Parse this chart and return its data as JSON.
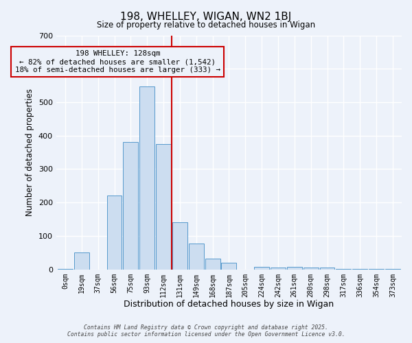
{
  "title": "198, WHELLEY, WIGAN, WN2 1BJ",
  "subtitle": "Size of property relative to detached houses in Wigan",
  "xlabel": "Distribution of detached houses by size in Wigan",
  "ylabel": "Number of detached properties",
  "bar_labels": [
    "0sqm",
    "19sqm",
    "37sqm",
    "56sqm",
    "75sqm",
    "93sqm",
    "112sqm",
    "131sqm",
    "149sqm",
    "168sqm",
    "187sqm",
    "205sqm",
    "224sqm",
    "242sqm",
    "261sqm",
    "280sqm",
    "298sqm",
    "317sqm",
    "336sqm",
    "354sqm",
    "373sqm"
  ],
  "bar_values": [
    2,
    50,
    0,
    220,
    380,
    548,
    375,
    140,
    78,
    32,
    20,
    0,
    8,
    5,
    8,
    5,
    5,
    2,
    2,
    2,
    2
  ],
  "bar_color": "#ccddf0",
  "bar_edge_color": "#5599cc",
  "vline_x": 7,
  "vline_color": "#cc0000",
  "annotation_text": "198 WHELLEY: 128sqm\n← 82% of detached houses are smaller (1,542)\n18% of semi-detached houses are larger (333) →",
  "ylim": [
    0,
    700
  ],
  "yticks": [
    0,
    100,
    200,
    300,
    400,
    500,
    600,
    700
  ],
  "bg_color": "#edf2fa",
  "grid_color": "#ffffff",
  "footer1": "Contains HM Land Registry data © Crown copyright and database right 2025.",
  "footer2": "Contains public sector information licensed under the Open Government Licence v3.0."
}
